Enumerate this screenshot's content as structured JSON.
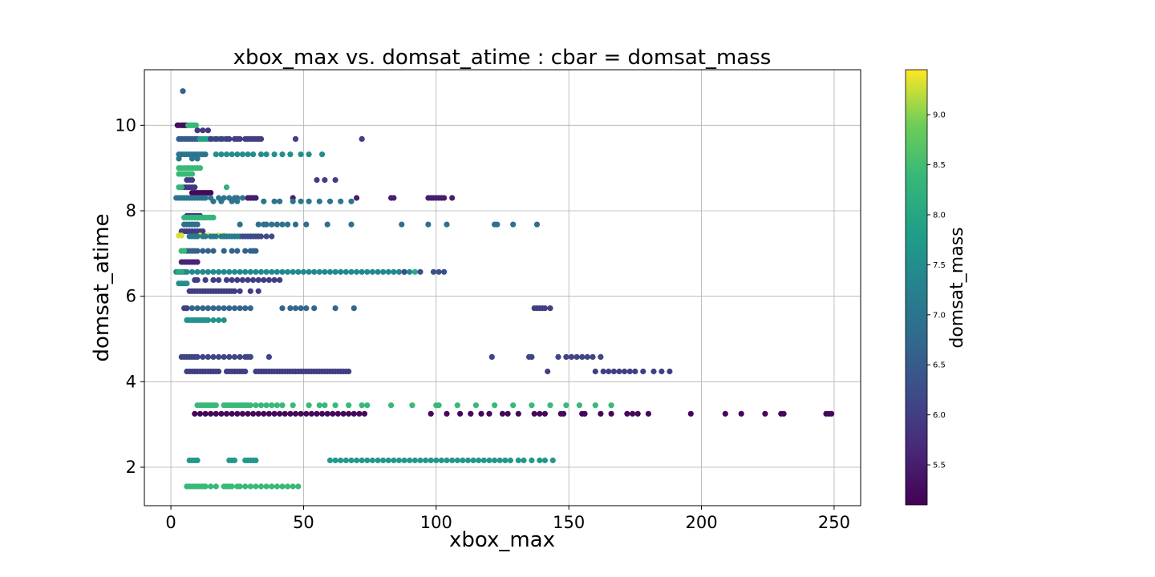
{
  "chart_data": {
    "type": "scatter",
    "title": "xbox_max vs. domsat_atime : cbar = domsat_mass",
    "xlabel": "xbox_max",
    "ylabel": "domsat_atime",
    "xlim": [
      -10,
      260
    ],
    "ylim": [
      1.1,
      11.3
    ],
    "xticks": [
      0,
      50,
      100,
      150,
      200,
      250
    ],
    "yticks": [
      2,
      4,
      6,
      8,
      10
    ],
    "grid": true,
    "colormap": "viridis",
    "colorbar": {
      "label": "domsat_mass",
      "range": [
        5.1,
        9.45
      ],
      "ticks": [
        5.5,
        6.0,
        6.5,
        7.0,
        7.5,
        8.0,
        8.5,
        9.0
      ],
      "tick_labels": [
        "5.5",
        "6.0",
        "6.5",
        "7.0",
        "7.5",
        "8.0",
        "8.5",
        "9.0"
      ]
    },
    "marker_color": "viridis(domsat_mass)",
    "series": [
      {
        "y": 10.8,
        "mass": 6.6,
        "x": [
          4.5
        ]
      },
      {
        "y": 10.0,
        "mass": 5.3,
        "x": [
          2.5,
          3,
          4,
          4.5,
          5,
          5.5,
          6
        ]
      },
      {
        "y": 10.0,
        "mass": 8.4,
        "x": [
          6.5,
          7,
          7.5,
          8,
          8.5,
          9,
          9.5
        ]
      },
      {
        "y": 9.88,
        "mass": 5.9,
        "x": [
          10,
          12,
          14
        ]
      },
      {
        "y": 9.68,
        "mass": 6.5,
        "x": [
          3,
          4,
          5,
          6,
          7,
          8,
          9,
          10
        ]
      },
      {
        "y": 9.68,
        "mass": 7.9,
        "x": [
          11,
          12,
          13,
          14,
          16,
          18,
          20
        ]
      },
      {
        "y": 9.68,
        "mass": 6.0,
        "x": [
          15,
          17,
          19,
          21,
          22,
          24,
          25,
          26,
          28,
          29,
          30,
          31,
          32,
          33,
          34,
          47,
          72
        ]
      },
      {
        "y": 9.32,
        "mass": 7.0,
        "x": [
          3,
          4,
          5,
          6,
          7,
          8,
          9,
          10,
          11,
          12,
          13
        ]
      },
      {
        "y": 9.32,
        "mass": 7.5,
        "x": [
          17,
          19,
          21,
          23,
          25,
          27,
          29,
          31,
          34,
          36,
          39,
          42,
          45,
          49,
          52,
          57
        ]
      },
      {
        "y": 9.22,
        "mass": 7.0,
        "x": [
          3,
          8,
          10
        ]
      },
      {
        "y": 9.0,
        "mass": 8.4,
        "x": [
          3,
          4,
          5,
          6,
          7,
          8,
          9,
          10,
          11
        ]
      },
      {
        "y": 8.86,
        "mass": 8.4,
        "x": [
          3,
          4,
          5,
          6,
          7,
          8
        ]
      },
      {
        "y": 8.72,
        "mass": 6.0,
        "x": [
          6,
          7,
          8,
          55,
          58,
          62
        ]
      },
      {
        "y": 8.55,
        "mass": 5.9,
        "x": [
          5,
          6,
          7,
          8,
          9
        ]
      },
      {
        "y": 8.55,
        "mass": 8.3,
        "x": [
          3,
          4,
          21
        ]
      },
      {
        "y": 8.42,
        "mass": 5.2,
        "x": [
          8,
          9,
          10,
          11,
          12,
          13,
          14,
          15
        ]
      },
      {
        "y": 8.3,
        "mass": 7.0,
        "x": [
          2,
          3,
          4,
          5,
          6,
          7,
          8,
          9,
          10,
          11,
          12,
          13,
          15,
          18,
          20,
          22,
          24,
          25,
          27,
          29,
          30,
          31,
          32
        ]
      },
      {
        "y": 8.3,
        "mass": 5.5,
        "x": [
          29,
          30,
          31,
          32,
          46,
          70,
          83,
          84,
          97,
          98,
          99,
          100,
          101,
          102,
          103,
          106
        ]
      },
      {
        "y": 8.22,
        "mass": 7.0,
        "x": [
          16,
          19,
          23,
          25,
          35,
          39,
          41,
          46,
          49,
          52,
          56,
          60,
          64,
          68
        ]
      },
      {
        "y": 7.88,
        "mass": 5.9,
        "x": [
          6,
          7,
          8,
          9,
          10,
          11
        ]
      },
      {
        "y": 7.84,
        "mass": 8.3,
        "x": [
          5,
          6,
          7,
          8,
          9,
          10,
          11,
          12,
          13,
          14,
          15,
          16
        ]
      },
      {
        "y": 7.68,
        "mass": 6.9,
        "x": [
          5,
          6,
          7,
          8,
          9,
          10,
          26,
          33,
          35,
          36,
          38,
          40,
          42,
          44,
          47,
          51,
          59,
          68,
          87,
          97,
          104,
          122,
          123,
          129,
          138
        ]
      },
      {
        "y": 7.52,
        "mass": 6.0,
        "x": [
          4,
          5,
          6,
          7,
          8,
          9,
          10,
          11,
          12
        ]
      },
      {
        "y": 7.42,
        "mass": 9.3,
        "x": [
          3,
          4,
          11,
          14,
          18,
          20
        ]
      },
      {
        "y": 7.4,
        "mass": 7.1,
        "x": [
          7,
          8,
          9,
          10,
          12,
          13,
          15,
          16,
          17,
          19,
          20,
          21,
          22,
          23,
          24,
          25,
          26
        ]
      },
      {
        "y": 7.4,
        "mass": 6.2,
        "x": [
          27,
          28,
          29,
          30,
          31,
          32,
          33,
          34,
          36,
          38
        ]
      },
      {
        "y": 7.06,
        "mass": 6.6,
        "x": [
          4,
          5,
          6,
          7,
          8,
          9,
          10,
          12,
          14,
          16,
          20,
          23,
          25,
          28,
          30,
          31,
          32
        ]
      },
      {
        "y": 7.06,
        "mass": 8.4,
        "x": [
          4,
          5
        ]
      },
      {
        "y": 6.8,
        "mass": 5.6,
        "x": [
          4,
          5,
          6,
          7,
          8,
          9,
          10
        ]
      },
      {
        "y": 6.57,
        "mass": 7.4,
        "x": [
          2,
          3,
          4,
          5,
          6,
          8,
          10,
          12,
          14,
          16,
          18,
          20,
          22,
          24,
          26,
          28,
          30,
          32,
          34,
          36,
          38,
          40,
          42,
          44,
          46,
          48,
          50,
          52,
          54,
          56,
          58,
          60,
          62,
          64,
          66,
          68,
          70,
          72,
          74,
          76,
          78,
          80,
          82,
          84,
          86,
          88,
          90
        ]
      },
      {
        "y": 6.57,
        "mass": 8.1,
        "x": [
          3,
          4,
          92
        ]
      },
      {
        "y": 6.57,
        "mass": 6.3,
        "x": [
          88,
          94,
          99,
          101,
          103
        ]
      },
      {
        "y": 6.38,
        "mass": 6.0,
        "x": [
          9,
          10,
          13,
          16,
          18,
          21,
          23,
          25,
          27,
          29,
          31,
          33,
          35,
          37,
          39,
          41
        ]
      },
      {
        "y": 6.3,
        "mass": 7.5,
        "x": [
          3,
          4,
          5,
          6
        ]
      },
      {
        "y": 6.12,
        "mass": 6.0,
        "x": [
          7,
          8,
          9,
          10,
          11,
          12,
          13,
          14,
          15,
          16,
          17,
          18,
          19,
          20,
          21,
          22,
          23,
          24,
          26,
          30,
          33
        ]
      },
      {
        "y": 5.72,
        "mass": 6.7,
        "x": [
          6,
          8,
          10,
          12,
          14,
          16,
          18,
          20,
          22,
          24,
          26,
          28,
          30,
          42,
          45,
          47,
          49,
          51,
          54,
          62,
          69
        ]
      },
      {
        "y": 5.72,
        "mass": 6.0,
        "x": [
          5,
          6,
          137,
          138,
          139,
          140,
          141,
          143
        ]
      },
      {
        "y": 5.44,
        "mass": 7.6,
        "x": [
          6,
          7,
          8,
          9,
          10,
          11,
          12,
          13,
          14,
          16,
          18,
          20
        ]
      },
      {
        "y": 4.58,
        "mass": 6.1,
        "x": [
          4,
          5,
          6,
          7,
          8,
          9,
          10,
          12,
          14,
          16,
          18,
          20,
          22,
          24,
          26,
          28,
          29,
          30,
          37,
          121,
          135,
          136,
          146,
          149,
          151,
          153,
          155,
          157,
          159,
          162
        ]
      },
      {
        "y": 4.24,
        "mass": 6.0,
        "x": [
          6,
          7,
          8,
          9,
          10,
          11,
          12,
          13,
          14,
          15,
          16,
          17,
          18,
          21,
          22,
          23,
          24,
          25,
          26,
          27,
          28,
          32,
          33,
          34,
          35,
          36,
          37,
          38,
          39,
          40,
          41,
          42,
          43,
          44,
          45,
          46,
          47,
          48,
          49,
          50,
          51,
          52,
          53,
          54,
          55,
          56,
          57,
          58,
          59,
          60,
          61,
          62,
          63,
          64,
          65,
          66,
          67,
          142,
          160,
          163,
          165,
          167,
          169,
          171,
          173,
          175,
          178,
          182,
          185,
          188
        ]
      },
      {
        "y": 3.45,
        "mass": 8.4,
        "x": [
          10,
          11,
          12,
          13,
          14,
          15,
          16,
          17,
          20,
          21,
          22,
          23,
          24,
          25,
          26,
          27,
          28,
          29,
          30,
          32,
          34,
          36,
          38,
          40,
          42,
          46,
          52,
          56,
          58,
          62,
          67,
          72,
          74,
          83,
          91,
          100,
          101,
          108,
          115,
          122,
          129,
          136,
          143,
          149,
          154,
          160,
          166
        ]
      },
      {
        "y": 3.25,
        "mass": 5.2,
        "x": [
          9,
          11,
          13,
          15,
          17,
          19,
          21,
          23,
          25,
          27,
          29,
          31,
          33,
          35,
          37,
          39,
          41,
          43,
          45,
          47,
          49,
          51,
          53,
          55,
          57,
          59,
          61,
          63,
          65,
          67,
          69,
          71,
          73,
          98,
          104,
          109,
          113,
          117,
          120,
          125,
          127,
          131,
          137,
          139,
          141,
          147,
          148,
          155,
          156,
          162,
          166,
          172,
          174,
          176,
          180,
          196,
          209,
          215,
          224,
          230,
          231,
          247,
          248,
          249
        ]
      },
      {
        "y": 2.16,
        "mass": 7.7,
        "x": [
          7,
          8,
          9,
          10,
          22,
          23,
          24,
          28,
          29,
          30,
          31,
          32,
          60,
          62,
          64,
          66,
          68,
          70,
          72,
          74,
          76,
          78,
          80,
          82,
          84,
          86,
          88,
          90,
          92,
          94,
          96,
          98,
          100,
          102,
          104,
          106,
          108,
          110,
          112,
          114,
          116,
          118,
          120,
          122,
          124,
          126,
          128,
          131,
          133,
          136,
          139,
          141,
          144
        ]
      },
      {
        "y": 1.55,
        "mass": 8.4,
        "x": [
          6,
          7,
          8,
          9,
          10,
          11,
          12,
          13,
          15,
          17,
          20,
          21,
          22,
          23,
          25,
          26,
          28,
          30,
          32,
          34,
          36,
          38,
          40,
          42,
          44,
          46,
          48
        ]
      }
    ]
  }
}
